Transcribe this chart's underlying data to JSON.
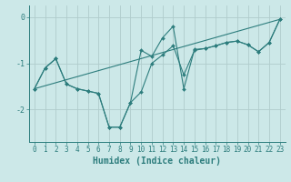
{
  "background_color": "#cce8e8",
  "line_color": "#2d7d7d",
  "grid_color": "#b0cccc",
  "xlabel": "Humidex (Indice chaleur)",
  "xlim": [
    -0.5,
    23.5
  ],
  "ylim": [
    -2.7,
    0.25
  ],
  "yticks": [
    0,
    -1,
    -2
  ],
  "xticks": [
    0,
    1,
    2,
    3,
    4,
    5,
    6,
    7,
    8,
    9,
    10,
    11,
    12,
    13,
    14,
    15,
    16,
    17,
    18,
    19,
    20,
    21,
    22,
    23
  ],
  "line1_x": [
    0,
    1,
    2,
    3,
    4,
    5,
    6,
    7,
    8,
    9,
    10,
    11,
    12,
    13,
    14,
    15,
    16,
    17,
    18,
    19,
    20,
    21,
    22,
    23
  ],
  "line1_y": [
    -1.55,
    -1.1,
    -0.9,
    -1.45,
    -1.55,
    -1.6,
    -1.65,
    -2.38,
    -2.38,
    -1.85,
    -0.72,
    -0.85,
    -0.45,
    -0.2,
    -1.55,
    -0.7,
    -0.68,
    -0.62,
    -0.55,
    -0.52,
    -0.6,
    -0.75,
    -0.55,
    -0.05
  ],
  "line2_x": [
    0,
    1,
    2,
    3,
    4,
    5,
    6,
    7,
    8,
    9,
    10,
    11,
    12,
    13,
    14,
    15,
    16,
    17,
    18,
    19,
    20,
    21,
    22,
    23
  ],
  "line2_y": [
    -1.55,
    -1.1,
    -0.9,
    -1.45,
    -1.55,
    -1.6,
    -1.65,
    -2.38,
    -2.38,
    -1.85,
    -1.62,
    -1.0,
    -0.82,
    -0.62,
    -1.25,
    -0.72,
    -0.68,
    -0.62,
    -0.55,
    -0.52,
    -0.6,
    -0.75,
    -0.55,
    -0.05
  ],
  "line3_x": [
    0,
    23
  ],
  "line3_y": [
    -1.55,
    -0.05
  ],
  "tick_fontsize": 5.5,
  "xlabel_fontsize": 7
}
